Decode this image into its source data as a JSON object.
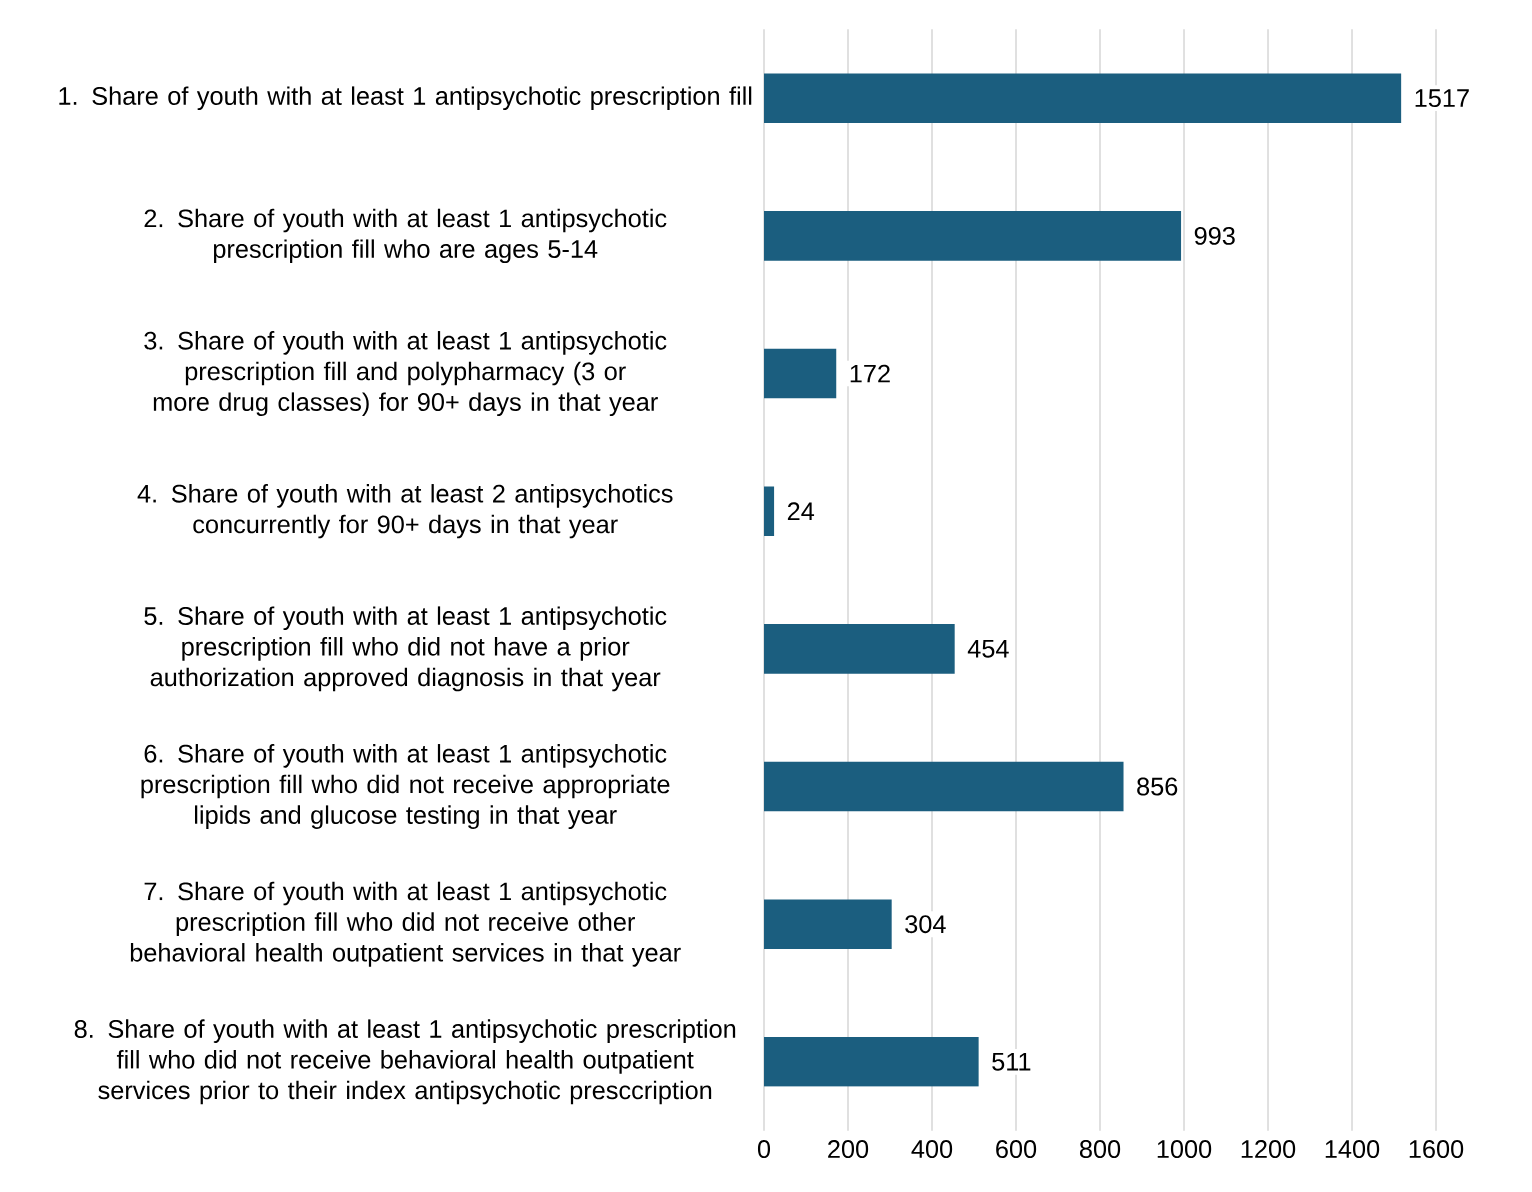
{
  "chart_data": {
    "type": "bar",
    "orientation": "horizontal",
    "categories": [
      "1. Share of youth with at least 1 antipsychotic prescription fill",
      "2. Share of youth with at least 1 antipsychotic prescription fill who are ages 5-14",
      "3. Share of youth with at least 1 antipsychotic prescription fill and polypharmacy (3 or more drug classes) for 90+ days in that year",
      "4. Share of youth with at least 2 antipsychotics concurrently for 90+ days in that year",
      "5. Share of youth with at least 1 antipsychotic prescription fill who did not have a prior authorization approved diagnosis in that year",
      "6. Share of youth with at least 1 antipsychotic prescription fill who did not receive appropriate lipids and glucose testing in that year",
      "7. Share of youth with at least 1 antipsychotic prescription fill who did not receive other behavioral health outpatient services in that year",
      "8. Share of youth with at least 1 antipsychotic prescription fill who did not receive behavioral health outpatient services prior to their index antipsychotic presccription"
    ],
    "values": [
      1517,
      993,
      172,
      24,
      454,
      856,
      304,
      511
    ],
    "color": "#1b5e7f",
    "xlim": [
      0,
      1600
    ],
    "xticks": [
      0,
      200,
      400,
      600,
      800,
      1000,
      1200,
      1400,
      1600
    ],
    "grid": "x",
    "data_labels": true
  }
}
